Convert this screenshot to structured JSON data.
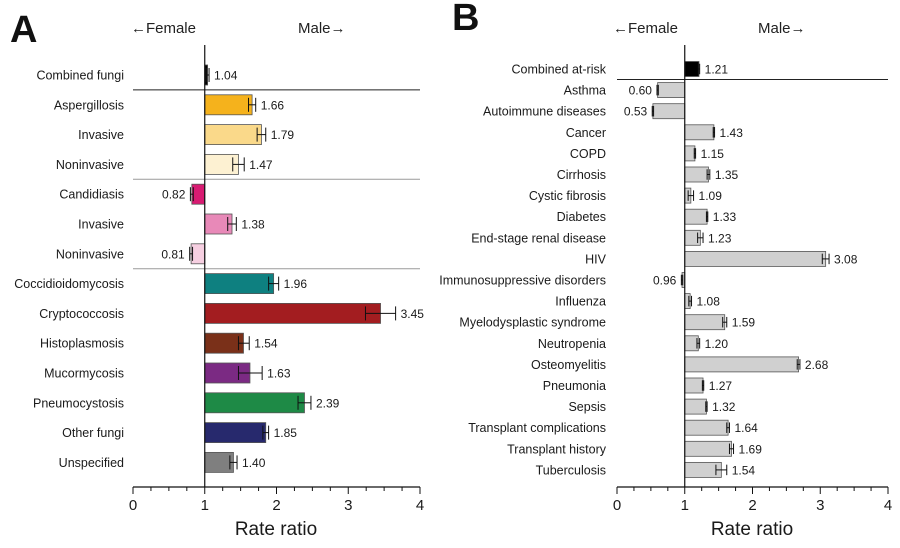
{
  "panels": {
    "a": {
      "letter": "A",
      "female_label": "←Female",
      "male_label": "Male→"
    },
    "b": {
      "letter": "B",
      "female_label": "←Female",
      "male_label": "Male→"
    }
  },
  "colors": {
    "combined": "#000000",
    "aspergillosis": "#F5B21C",
    "aspergillosis_invasive": "#FAD98A",
    "aspergillosis_noninvasive": "#FDF1D2",
    "candidiasis": "#D81B72",
    "candidiasis_invasive": "#E889B8",
    "candidiasis_noninvasive": "#F6CFE1",
    "coccidioidomycosis": "#0E8080",
    "cryptococcosis": "#A31D20",
    "histoplasmosis": "#7A3019",
    "mucormycosis": "#7B2A83",
    "pneumocystosis": "#1E8A46",
    "other_fungi": "#27296D",
    "unspecified": "#7F7F7F",
    "panel_b_bars": "#D0D0D0"
  },
  "chart_data": [
    {
      "type": "bar",
      "orientation": "horizontal",
      "xlabel": "Rate ratio",
      "xlim": [
        0,
        4
      ],
      "xticks": [
        0,
        1,
        2,
        3,
        4
      ],
      "reference_value": 1,
      "categories": [
        "Combined fungi",
        "Aspergillosis",
        "Invasive",
        "Noninvasive",
        "Candidiasis",
        "Invasive",
        "Noninvasive",
        "Coccidioidomycosis",
        "Cryptococcosis",
        "Histoplasmosis",
        "Mucormycosis",
        "Pneumocystosis",
        "Other fungi",
        "Unspecified"
      ],
      "values": [
        1.04,
        1.66,
        1.79,
        1.47,
        0.82,
        1.38,
        0.81,
        1.96,
        3.45,
        1.54,
        1.63,
        2.39,
        1.85,
        1.4
      ],
      "value_labels": [
        "1.04",
        "1.66",
        "1.79",
        "1.47",
        "0.82",
        "1.38",
        "0.81",
        "1.96",
        "3.45",
        "1.54",
        "1.63",
        "2.39",
        "1.85",
        "1.40"
      ],
      "ci_low": [
        1.02,
        1.61,
        1.73,
        1.39,
        0.8,
        1.32,
        0.79,
        1.89,
        3.24,
        1.47,
        1.47,
        2.3,
        1.81,
        1.35
      ],
      "ci_high": [
        1.06,
        1.71,
        1.85,
        1.55,
        0.84,
        1.44,
        0.83,
        2.03,
        3.66,
        1.62,
        1.8,
        2.48,
        1.89,
        1.45
      ],
      "color_keys": [
        "combined",
        "aspergillosis",
        "aspergillosis_invasive",
        "aspergillosis_noninvasive",
        "candidiasis",
        "candidiasis_invasive",
        "candidiasis_noninvasive",
        "coccidioidomycosis",
        "cryptococcosis",
        "histoplasmosis",
        "mucormycosis",
        "pneumocystosis",
        "other_fungi",
        "unspecified"
      ],
      "separators_after": [
        {
          "index": 0,
          "style": "solid"
        },
        {
          "index": 3,
          "style": "gray"
        },
        {
          "index": 6,
          "style": "gray"
        }
      ]
    },
    {
      "type": "bar",
      "orientation": "horizontal",
      "xlabel": "Rate ratio",
      "xlim": [
        0,
        4
      ],
      "xticks": [
        0,
        1,
        2,
        3,
        4
      ],
      "reference_value": 1,
      "categories": [
        "Combined at-risk",
        "Asthma",
        "Autoimmune diseases",
        "Cancer",
        "COPD",
        "Cirrhosis",
        "Cystic fibrosis",
        "Diabetes",
        "End-stage renal disease",
        "HIV",
        "Immunosuppressive disorders",
        "Influenza",
        "Myelodysplastic syndrome",
        "Neutropenia",
        "Osteomyelitis",
        "Pneumonia",
        "Sepsis",
        "Transplant complications",
        "Transplant history",
        "Tuberculosis"
      ],
      "values": [
        1.21,
        0.6,
        0.53,
        1.43,
        1.15,
        1.35,
        1.09,
        1.33,
        1.23,
        3.08,
        0.96,
        1.08,
        1.59,
        1.2,
        2.68,
        1.27,
        1.32,
        1.64,
        1.69,
        1.54
      ],
      "value_labels": [
        "1.21",
        "0.60",
        "0.53",
        "1.43",
        "1.15",
        "1.35",
        "1.09",
        "1.33",
        "1.23",
        "3.08",
        "0.96",
        "1.08",
        "1.59",
        "1.20",
        "2.68",
        "1.27",
        "1.32",
        "1.64",
        "1.69",
        "1.54"
      ],
      "ci_low": [
        1.2,
        0.59,
        0.52,
        1.42,
        1.14,
        1.33,
        1.05,
        1.32,
        1.19,
        3.03,
        0.95,
        1.06,
        1.56,
        1.18,
        2.66,
        1.26,
        1.31,
        1.62,
        1.66,
        1.46
      ],
      "ci_high": [
        1.22,
        0.61,
        0.54,
        1.44,
        1.16,
        1.37,
        1.13,
        1.34,
        1.27,
        3.13,
        0.97,
        1.1,
        1.62,
        1.22,
        2.7,
        1.28,
        1.33,
        1.66,
        1.72,
        1.62
      ],
      "color_keys": [
        "combined",
        "panel_b_bars",
        "panel_b_bars",
        "panel_b_bars",
        "panel_b_bars",
        "panel_b_bars",
        "panel_b_bars",
        "panel_b_bars",
        "panel_b_bars",
        "panel_b_bars",
        "panel_b_bars",
        "panel_b_bars",
        "panel_b_bars",
        "panel_b_bars",
        "panel_b_bars",
        "panel_b_bars",
        "panel_b_bars",
        "panel_b_bars",
        "panel_b_bars",
        "panel_b_bars"
      ],
      "separators_after": [
        {
          "index": 0,
          "style": "solid"
        }
      ]
    }
  ]
}
